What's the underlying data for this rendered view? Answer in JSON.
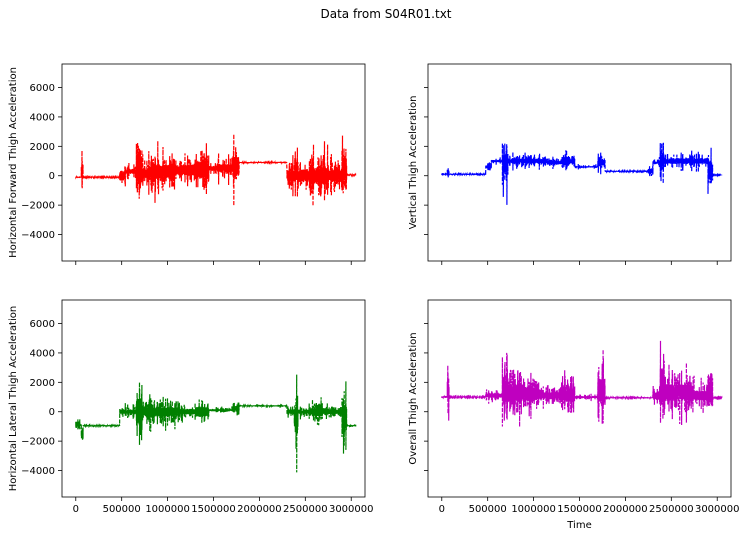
{
  "figure_title": "Data from S04R01.txt",
  "chart_data": [
    {
      "type": "line",
      "panel": "top-left",
      "ylabel": "Horizontal Forward Thigh Acceleration",
      "xlabel": "",
      "color": "#ff0000",
      "line_style": "dashed",
      "xlim": [
        -150000,
        3150000
      ],
      "ylim": [
        -5800,
        7600
      ],
      "yticks": [
        -4000,
        -2000,
        0,
        2000,
        4000,
        6000
      ],
      "ytick_labels": [
        "−4000",
        "−2000",
        "0",
        "2000",
        "4000",
        "6000"
      ],
      "xticks": [
        0,
        500000,
        1000000,
        1500000,
        2000000,
        2500000,
        3000000
      ],
      "xtick_labels": [],
      "show_ytick_labels": true,
      "segments": [
        {
          "x0": 0,
          "x1": 60000,
          "base": -100,
          "amp": 150
        },
        {
          "x0": 60000,
          "x1": 80000,
          "base": 400,
          "amp": 1700
        },
        {
          "x0": 80000,
          "x1": 480000,
          "base": -100,
          "amp": 80
        },
        {
          "x0": 480000,
          "x1": 540000,
          "base": 0,
          "amp": 1400
        },
        {
          "x0": 540000,
          "x1": 660000,
          "base": 300,
          "amp": 700
        },
        {
          "x0": 660000,
          "x1": 720000,
          "base": 400,
          "amp": 3600
        },
        {
          "x0": 720000,
          "x1": 800000,
          "base": 200,
          "amp": 1500
        },
        {
          "x0": 800000,
          "x1": 950000,
          "base": 200,
          "amp": 2500
        },
        {
          "x0": 950000,
          "x1": 1080000,
          "base": 300,
          "amp": 2200
        },
        {
          "x0": 1080000,
          "x1": 1300000,
          "base": 400,
          "amp": 1500
        },
        {
          "x0": 1300000,
          "x1": 1450000,
          "base": 400,
          "amp": 2400
        },
        {
          "x0": 1450000,
          "x1": 1550000,
          "base": 500,
          "amp": 700
        },
        {
          "x0": 1550000,
          "x1": 1700000,
          "base": 500,
          "amp": 1200
        },
        {
          "x0": 1700000,
          "x1": 1780000,
          "base": 600,
          "amp": 2800
        },
        {
          "x0": 1780000,
          "x1": 2300000,
          "base": 900,
          "amp": 120
        },
        {
          "x0": 2300000,
          "x1": 2380000,
          "base": 0,
          "amp": 1500
        },
        {
          "x0": 2380000,
          "x1": 2420000,
          "base": 300,
          "amp": 3600
        },
        {
          "x0": 2420000,
          "x1": 2550000,
          "base": 0,
          "amp": 1800
        },
        {
          "x0": 2550000,
          "x1": 2750000,
          "base": 0,
          "amp": 2400
        },
        {
          "x0": 2750000,
          "x1": 2900000,
          "base": 0,
          "amp": 1800
        },
        {
          "x0": 2900000,
          "x1": 2950000,
          "base": 300,
          "amp": 2600
        },
        {
          "x0": 2950000,
          "x1": 3050000,
          "base": 50,
          "amp": 100
        }
      ]
    },
    {
      "type": "line",
      "panel": "top-right",
      "ylabel": "Vertical Thigh Acceleration",
      "xlabel": "",
      "color": "#0000ff",
      "line_style": "dashed",
      "xlim": [
        -150000,
        3150000
      ],
      "ylim": [
        -5800,
        7600
      ],
      "yticks": [
        -4000,
        -2000,
        0,
        2000,
        4000,
        6000
      ],
      "ytick_labels": [],
      "xticks": [
        0,
        500000,
        1000000,
        1500000,
        2000000,
        2500000,
        3000000
      ],
      "xtick_labels": [],
      "show_ytick_labels": false,
      "segments": [
        {
          "x0": 0,
          "x1": 60000,
          "base": 100,
          "amp": 150
        },
        {
          "x0": 60000,
          "x1": 80000,
          "base": 200,
          "amp": 900
        },
        {
          "x0": 80000,
          "x1": 480000,
          "base": 100,
          "amp": 100
        },
        {
          "x0": 480000,
          "x1": 540000,
          "base": 600,
          "amp": 500
        },
        {
          "x0": 540000,
          "x1": 660000,
          "base": 1000,
          "amp": 300
        },
        {
          "x0": 660000,
          "x1": 720000,
          "base": 800,
          "amp": 3000
        },
        {
          "x0": 720000,
          "x1": 1000000,
          "base": 1000,
          "amp": 700
        },
        {
          "x0": 1000000,
          "x1": 1150000,
          "base": 1000,
          "amp": 600
        },
        {
          "x0": 1150000,
          "x1": 1300000,
          "base": 900,
          "amp": 500
        },
        {
          "x0": 1300000,
          "x1": 1450000,
          "base": 1000,
          "amp": 800
        },
        {
          "x0": 1450000,
          "x1": 1700000,
          "base": 600,
          "amp": 200
        },
        {
          "x0": 1700000,
          "x1": 1780000,
          "base": 900,
          "amp": 800
        },
        {
          "x0": 1780000,
          "x1": 2250000,
          "base": 300,
          "amp": 100
        },
        {
          "x0": 2250000,
          "x1": 2300000,
          "base": 300,
          "amp": 700
        },
        {
          "x0": 2300000,
          "x1": 2380000,
          "base": 900,
          "amp": 400
        },
        {
          "x0": 2380000,
          "x1": 2420000,
          "base": 1000,
          "amp": 2800
        },
        {
          "x0": 2420000,
          "x1": 2900000,
          "base": 1000,
          "amp": 800
        },
        {
          "x0": 2900000,
          "x1": 2950000,
          "base": 300,
          "amp": 3000
        },
        {
          "x0": 2950000,
          "x1": 3050000,
          "base": 50,
          "amp": 80
        }
      ]
    },
    {
      "type": "line",
      "panel": "bottom-left",
      "ylabel": "Horizontal Lateral Thigh Acceleration",
      "xlabel": "",
      "color": "#008000",
      "line_style": "dashed",
      "xlim": [
        -150000,
        3150000
      ],
      "ylim": [
        -5800,
        7600
      ],
      "yticks": [
        -4000,
        -2000,
        0,
        2000,
        4000,
        6000
      ],
      "ytick_labels": [
        "−4000",
        "−2000",
        "0",
        "2000",
        "4000",
        "6000"
      ],
      "xticks": [
        0,
        500000,
        1000000,
        1500000,
        2000000,
        2500000,
        3000000
      ],
      "xtick_labels": [
        "0",
        "500000",
        "1000000",
        "1500000",
        "2000000",
        "2500000",
        "3000000"
      ],
      "show_ytick_labels": true,
      "segments": [
        {
          "x0": 0,
          "x1": 60000,
          "base": -900,
          "amp": 400
        },
        {
          "x0": 60000,
          "x1": 80000,
          "base": -1500,
          "amp": 1800
        },
        {
          "x0": 80000,
          "x1": 480000,
          "base": -950,
          "amp": 100
        },
        {
          "x0": 480000,
          "x1": 660000,
          "base": 0,
          "amp": 600
        },
        {
          "x0": 660000,
          "x1": 720000,
          "base": 0,
          "amp": 3800
        },
        {
          "x0": 720000,
          "x1": 900000,
          "base": 0,
          "amp": 1500
        },
        {
          "x0": 900000,
          "x1": 1100000,
          "base": 0,
          "amp": 1300
        },
        {
          "x0": 1100000,
          "x1": 1300000,
          "base": 0,
          "amp": 800
        },
        {
          "x0": 1300000,
          "x1": 1450000,
          "base": 0,
          "amp": 1400
        },
        {
          "x0": 1450000,
          "x1": 1700000,
          "base": 100,
          "amp": 300
        },
        {
          "x0": 1700000,
          "x1": 1780000,
          "base": 200,
          "amp": 800
        },
        {
          "x0": 1780000,
          "x1": 2300000,
          "base": 400,
          "amp": 120
        },
        {
          "x0": 2300000,
          "x1": 2380000,
          "base": 0,
          "amp": 600
        },
        {
          "x0": 2380000,
          "x1": 2420000,
          "base": -500,
          "amp": 3800
        },
        {
          "x0": 2420000,
          "x1": 2550000,
          "base": 0,
          "amp": 600
        },
        {
          "x0": 2550000,
          "x1": 2750000,
          "base": 0,
          "amp": 1000
        },
        {
          "x0": 2750000,
          "x1": 2900000,
          "base": 0,
          "amp": 700
        },
        {
          "x0": 2900000,
          "x1": 2950000,
          "base": -500,
          "amp": 4400
        },
        {
          "x0": 2950000,
          "x1": 3050000,
          "base": -950,
          "amp": 150
        }
      ]
    },
    {
      "type": "line",
      "panel": "bottom-right",
      "ylabel": "Overall Thigh Acceleration",
      "xlabel": "Time",
      "color": "#bf00bf",
      "line_style": "dashed",
      "xlim": [
        -150000,
        3150000
      ],
      "ylim": [
        -5800,
        7600
      ],
      "yticks": [
        -4000,
        -2000,
        0,
        2000,
        4000,
        6000
      ],
      "ytick_labels": [],
      "xticks": [
        0,
        500000,
        1000000,
        1500000,
        2000000,
        2500000,
        3000000
      ],
      "xtick_labels": [
        "0",
        "500000",
        "1000000",
        "1500000",
        "2000000",
        "2500000",
        "3000000"
      ],
      "show_ytick_labels": false,
      "segments": [
        {
          "x0": 0,
          "x1": 60000,
          "base": 1000,
          "amp": 100
        },
        {
          "x0": 60000,
          "x1": 80000,
          "base": 1500,
          "amp": 2300
        },
        {
          "x0": 80000,
          "x1": 480000,
          "base": 1000,
          "amp": 80
        },
        {
          "x0": 480000,
          "x1": 660000,
          "base": 1100,
          "amp": 600
        },
        {
          "x0": 660000,
          "x1": 720000,
          "base": 1500,
          "amp": 4300
        },
        {
          "x0": 720000,
          "x1": 900000,
          "base": 1300,
          "amp": 2700
        },
        {
          "x0": 900000,
          "x1": 1100000,
          "base": 1200,
          "amp": 1800
        },
        {
          "x0": 1100000,
          "x1": 1300000,
          "base": 1100,
          "amp": 1000
        },
        {
          "x0": 1300000,
          "x1": 1450000,
          "base": 1200,
          "amp": 2200
        },
        {
          "x0": 1450000,
          "x1": 1700000,
          "base": 1000,
          "amp": 300
        },
        {
          "x0": 1700000,
          "x1": 1780000,
          "base": 1300,
          "amp": 4000
        },
        {
          "x0": 1780000,
          "x1": 2300000,
          "base": 950,
          "amp": 100
        },
        {
          "x0": 2300000,
          "x1": 2380000,
          "base": 1100,
          "amp": 1200
        },
        {
          "x0": 2380000,
          "x1": 2420000,
          "base": 1800,
          "amp": 5300
        },
        {
          "x0": 2420000,
          "x1": 2550000,
          "base": 1300,
          "amp": 2300
        },
        {
          "x0": 2550000,
          "x1": 2750000,
          "base": 1300,
          "amp": 2300
        },
        {
          "x0": 2750000,
          "x1": 2900000,
          "base": 1100,
          "amp": 1300
        },
        {
          "x0": 2900000,
          "x1": 2950000,
          "base": 1500,
          "amp": 4600
        },
        {
          "x0": 2950000,
          "x1": 3050000,
          "base": 950,
          "amp": 80
        }
      ]
    }
  ]
}
